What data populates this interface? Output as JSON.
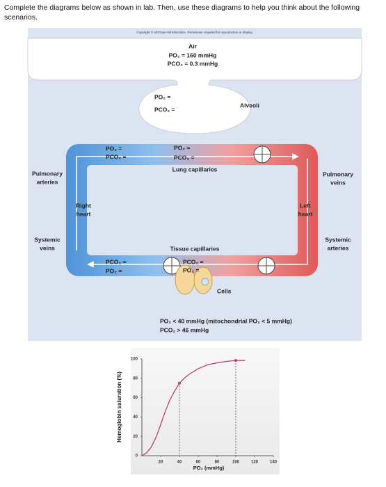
{
  "instructions": "Complete the diagrams below as shown in lab. Then, use these diagrams to help you think about the following scenarios.",
  "diagram": {
    "copyright": "Copyright © McGraw-Hill Education. Permission required for reproduction or display.",
    "air": {
      "title": "Air",
      "po2": "PO₂ = 160 mmHg",
      "pco2": "PCO₂ = 0.3 mmHg"
    },
    "alveolus": {
      "po2": "PO₂ =",
      "pco2": "PCO₂ ="
    },
    "alveoli": "Alveoli",
    "pulmonary_artery_blood": {
      "po2": "PO₂ =",
      "pco2": "PCO₂ ="
    },
    "lung_capillaries": {
      "po2": "PO₂ =",
      "pco2": "PCO₂ =",
      "label": "Lung capillaries"
    },
    "pulmonary_arteries": [
      "Pulmonary",
      "arteries"
    ],
    "pulmonary_veins": [
      "Pulmonary",
      "veins"
    ],
    "right_heart": [
      "Right",
      "heart"
    ],
    "left_heart": [
      "Left",
      "heart"
    ],
    "systemic_veins": [
      "Systemic",
      "veins"
    ],
    "systemic_arteries": [
      "Systemic",
      "arteries"
    ],
    "tissue_capillaries": {
      "label": "Tissue capillaries",
      "pco2": "PCO₂ =",
      "po2": "PO₂ ="
    },
    "venous_blood": {
      "pco2": "PCO₂ =",
      "po2": "PO₂ ="
    },
    "cells": "Cells",
    "cell_conditions": [
      "PO₂ < 40 mmHg (mitochondrial PO₂ < 5 mmHg)",
      "PCO₂ > 46 mmHg"
    ]
  },
  "chart_data": {
    "type": "line",
    "ylabel": "Hemoglobin saturation (%)",
    "xlabel": "PO₂ (mmHg)",
    "xlim": [
      0,
      140
    ],
    "xticks": [
      20,
      40,
      60,
      80,
      100,
      120,
      140
    ],
    "ylim": [
      0,
      100
    ],
    "yticks": [
      0,
      20,
      40,
      60,
      80,
      100
    ],
    "series": [
      {
        "x": [
          0,
          5,
          10,
          15,
          20,
          25,
          30,
          35,
          40,
          45,
          50,
          60,
          70,
          80,
          90,
          100,
          110
        ],
        "values": [
          0,
          3,
          9,
          19,
          32,
          46,
          58,
          67,
          75,
          80,
          84,
          90,
          94,
          96,
          97.5,
          98.5,
          98.5
        ],
        "color": "#b8406f"
      },
      {
        "x": [
          40,
          100
        ],
        "values": [
          75,
          98.5
        ],
        "color": "#b8406f",
        "marker": "dot",
        "drop_lines": "dashed"
      }
    ]
  }
}
